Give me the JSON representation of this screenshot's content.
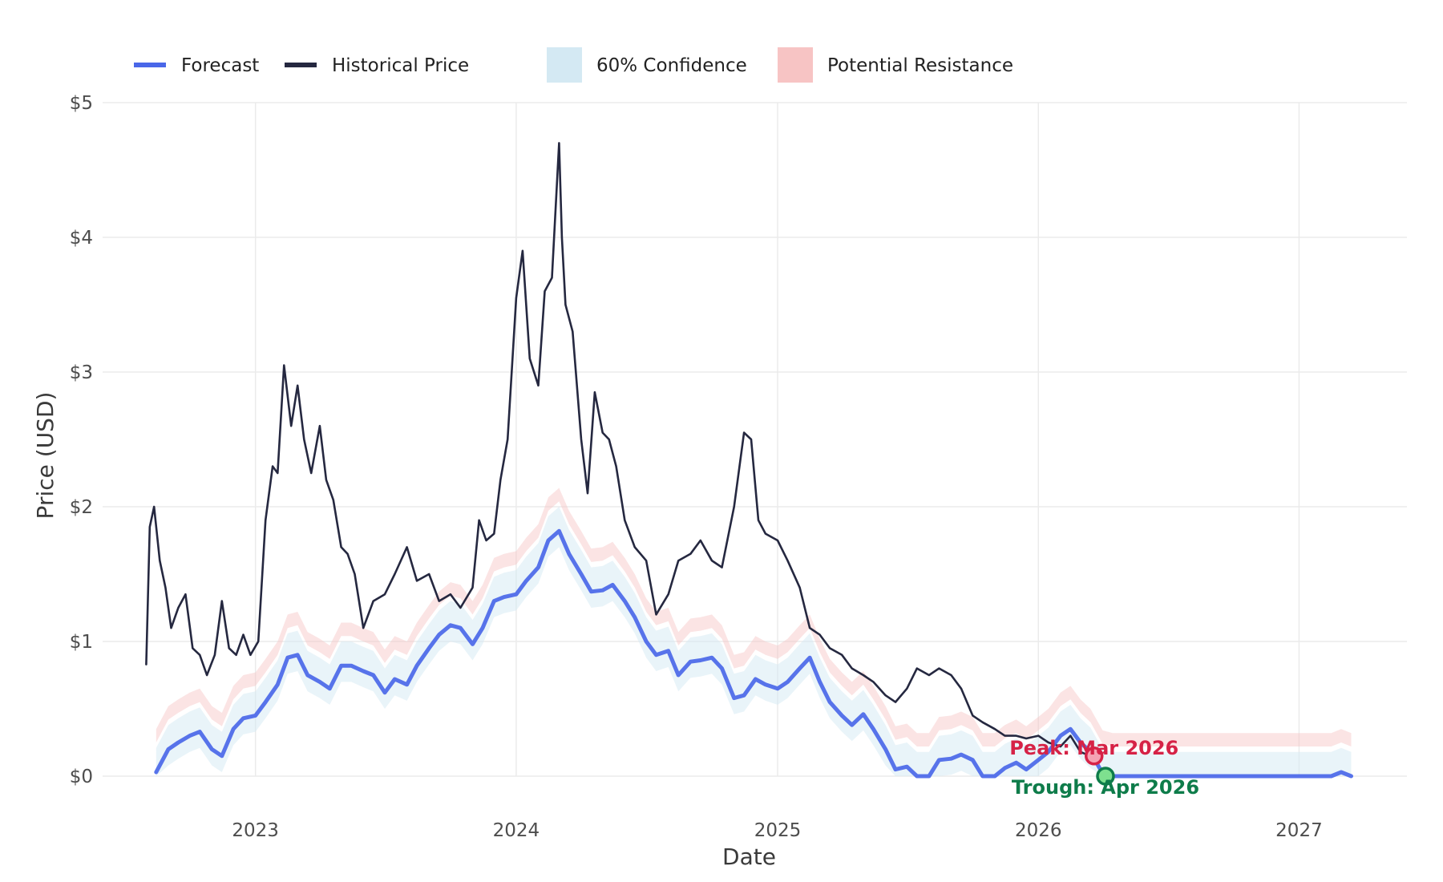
{
  "chart_data": {
    "type": "line",
    "title": "",
    "xlabel": "Date",
    "ylabel": "Price (USD)",
    "ylim": [
      0,
      5
    ],
    "xlim": [
      "2022-06-01",
      "2027-06-01"
    ],
    "y_ticks": [
      0,
      1,
      2,
      3,
      4,
      5
    ],
    "y_tick_labels": [
      "$0",
      "$1",
      "$2",
      "$3",
      "$4",
      "$5"
    ],
    "x_ticks": [
      "2023-01-01",
      "2024-01-01",
      "2025-01-01",
      "2026-01-01",
      "2027-01-01"
    ],
    "x_tick_labels": [
      "2023",
      "2024",
      "2025",
      "2026",
      "2027"
    ],
    "grid": true,
    "legend_position": "top-left",
    "legend": [
      {
        "label": "Forecast",
        "kind": "line",
        "color": "#4a67e8"
      },
      {
        "label": "Historical Price",
        "kind": "line",
        "color": "#252840"
      },
      {
        "label": "60% Confidence",
        "kind": "band",
        "color": "#d4e9f3"
      },
      {
        "label": "Potential Resistance",
        "kind": "band",
        "color": "#f7c4c4"
      }
    ],
    "series": [
      {
        "name": "Historical Price",
        "color": "#252840",
        "x": [
          "2022-08-01",
          "2022-08-06",
          "2022-08-12",
          "2022-08-20",
          "2022-08-28",
          "2022-09-05",
          "2022-09-15",
          "2022-09-25",
          "2022-10-05",
          "2022-10-15",
          "2022-10-25",
          "2022-11-05",
          "2022-11-15",
          "2022-11-25",
          "2022-12-05",
          "2022-12-15",
          "2022-12-25",
          "2023-01-05",
          "2023-01-15",
          "2023-01-25",
          "2023-02-01",
          "2023-02-10",
          "2023-02-20",
          "2023-03-01",
          "2023-03-10",
          "2023-03-20",
          "2023-04-01",
          "2023-04-10",
          "2023-04-20",
          "2023-05-01",
          "2023-05-10",
          "2023-05-20",
          "2023-06-01",
          "2023-06-15",
          "2023-07-01",
          "2023-07-15",
          "2023-08-01",
          "2023-08-15",
          "2023-09-01",
          "2023-09-15",
          "2023-10-01",
          "2023-10-15",
          "2023-11-01",
          "2023-11-10",
          "2023-11-20",
          "2023-12-01",
          "2023-12-10",
          "2023-12-20",
          "2024-01-01",
          "2024-01-10",
          "2024-01-20",
          "2024-02-01",
          "2024-02-10",
          "2024-02-20",
          "2024-03-01",
          "2024-03-05",
          "2024-03-10",
          "2024-03-20",
          "2024-04-01",
          "2024-04-10",
          "2024-04-20",
          "2024-05-01",
          "2024-05-10",
          "2024-05-20",
          "2024-06-01",
          "2024-06-15",
          "2024-07-01",
          "2024-07-15",
          "2024-08-01",
          "2024-08-15",
          "2024-09-01",
          "2024-09-15",
          "2024-10-01",
          "2024-10-15",
          "2024-11-01",
          "2024-11-15",
          "2024-11-25",
          "2024-12-05",
          "2024-12-15",
          "2025-01-01",
          "2025-01-15",
          "2025-02-01",
          "2025-02-15",
          "2025-03-01",
          "2025-03-15",
          "2025-04-01",
          "2025-04-15",
          "2025-05-01",
          "2025-05-15",
          "2025-06-01",
          "2025-06-15",
          "2025-07-01",
          "2025-07-15",
          "2025-08-01",
          "2025-08-15",
          "2025-09-01",
          "2025-09-15",
          "2025-10-01",
          "2025-10-15",
          "2025-11-01",
          "2025-11-15",
          "2025-12-01",
          "2025-12-15",
          "2026-01-01",
          "2026-01-15",
          "2026-02-01",
          "2026-02-15",
          "2026-03-01",
          "2026-03-15"
        ],
        "values": [
          0.83,
          1.85,
          2.0,
          1.6,
          1.4,
          1.1,
          1.25,
          1.35,
          0.95,
          0.9,
          0.75,
          0.9,
          1.3,
          0.95,
          0.9,
          1.05,
          0.9,
          1.0,
          1.9,
          2.3,
          2.25,
          3.05,
          2.6,
          2.9,
          2.5,
          2.25,
          2.6,
          2.2,
          2.05,
          1.7,
          1.65,
          1.5,
          1.1,
          1.3,
          1.35,
          1.5,
          1.7,
          1.45,
          1.5,
          1.3,
          1.35,
          1.25,
          1.4,
          1.9,
          1.75,
          1.8,
          2.2,
          2.5,
          3.55,
          3.9,
          3.1,
          2.9,
          3.6,
          3.7,
          4.7,
          4.0,
          3.5,
          3.3,
          2.5,
          2.1,
          2.85,
          2.55,
          2.5,
          2.3,
          1.9,
          1.7,
          1.6,
          1.2,
          1.35,
          1.6,
          1.65,
          1.75,
          1.6,
          1.55,
          2.0,
          2.55,
          2.5,
          1.9,
          1.8,
          1.75,
          1.6,
          1.4,
          1.1,
          1.05,
          0.95,
          0.9,
          0.8,
          0.75,
          0.7,
          0.6,
          0.55,
          0.65,
          0.8,
          0.75,
          0.8,
          0.75,
          0.65,
          0.45,
          0.4,
          0.35,
          0.3,
          0.3,
          0.28,
          0.3,
          0.25,
          0.22,
          0.3,
          0.18,
          0.15
        ]
      },
      {
        "name": "Forecast",
        "color": "#4a67e8",
        "x": [
          "2022-08-15",
          "2022-09-01",
          "2022-09-15",
          "2022-10-01",
          "2022-10-15",
          "2022-11-01",
          "2022-11-15",
          "2022-12-01",
          "2022-12-15",
          "2023-01-01",
          "2023-01-15",
          "2023-02-01",
          "2023-02-15",
          "2023-03-01",
          "2023-03-15",
          "2023-04-01",
          "2023-04-15",
          "2023-05-01",
          "2023-05-15",
          "2023-06-01",
          "2023-06-15",
          "2023-07-01",
          "2023-07-15",
          "2023-08-01",
          "2023-08-15",
          "2023-09-01",
          "2023-09-15",
          "2023-10-01",
          "2023-10-15",
          "2023-11-01",
          "2023-11-15",
          "2023-12-01",
          "2023-12-15",
          "2024-01-01",
          "2024-01-15",
          "2024-02-01",
          "2024-02-15",
          "2024-03-01",
          "2024-03-15",
          "2024-04-01",
          "2024-04-15",
          "2024-05-01",
          "2024-05-15",
          "2024-06-01",
          "2024-06-15",
          "2024-07-01",
          "2024-07-15",
          "2024-08-01",
          "2024-08-15",
          "2024-09-01",
          "2024-09-15",
          "2024-10-01",
          "2024-10-15",
          "2024-11-01",
          "2024-11-15",
          "2024-12-01",
          "2024-12-15",
          "2025-01-01",
          "2025-01-15",
          "2025-02-01",
          "2025-02-15",
          "2025-03-01",
          "2025-03-15",
          "2025-04-01",
          "2025-04-15",
          "2025-05-01",
          "2025-05-15",
          "2025-06-01",
          "2025-06-15",
          "2025-07-01",
          "2025-07-15",
          "2025-08-01",
          "2025-08-15",
          "2025-09-01",
          "2025-09-15",
          "2025-10-01",
          "2025-10-15",
          "2025-11-01",
          "2025-11-15",
          "2025-12-01",
          "2025-12-15",
          "2026-01-01",
          "2026-01-15",
          "2026-02-01",
          "2026-02-15",
          "2026-03-01",
          "2026-03-15",
          "2026-04-01",
          "2026-04-15",
          "2026-05-01",
          "2026-06-01",
          "2026-08-01",
          "2026-10-01",
          "2026-12-01",
          "2027-01-01",
          "2027-02-01",
          "2027-02-15",
          "2027-03-01",
          "2027-03-15"
        ],
        "values": [
          0.03,
          0.2,
          0.25,
          0.3,
          0.33,
          0.2,
          0.15,
          0.35,
          0.43,
          0.45,
          0.55,
          0.68,
          0.88,
          0.9,
          0.75,
          0.7,
          0.65,
          0.82,
          0.82,
          0.78,
          0.75,
          0.62,
          0.72,
          0.68,
          0.82,
          0.95,
          1.05,
          1.12,
          1.1,
          0.98,
          1.1,
          1.3,
          1.33,
          1.35,
          1.45,
          1.55,
          1.75,
          1.82,
          1.65,
          1.5,
          1.37,
          1.38,
          1.42,
          1.3,
          1.18,
          1.0,
          0.9,
          0.93,
          0.75,
          0.85,
          0.86,
          0.88,
          0.8,
          0.58,
          0.6,
          0.72,
          0.68,
          0.65,
          0.7,
          0.8,
          0.88,
          0.7,
          0.55,
          0.45,
          0.38,
          0.46,
          0.35,
          0.2,
          0.05,
          0.07,
          0.0,
          0.0,
          0.12,
          0.13,
          0.16,
          0.12,
          0.0,
          0.0,
          0.06,
          0.1,
          0.05,
          0.12,
          0.18,
          0.3,
          0.35,
          0.25,
          0.18,
          0.02,
          0.0,
          0.0,
          0.0,
          0.0,
          0.0,
          0.0,
          0.0,
          0.0,
          0.0,
          0.03,
          0.0
        ]
      }
    ],
    "confidence_band": {
      "label": "60% Confidence",
      "offset_lower": 0.12,
      "offset_upper": 0.18
    },
    "resistance_band": {
      "label": "Potential Resistance",
      "offset_lower": 0.22,
      "offset_upper": 0.32
    },
    "annotations": [
      {
        "text": "Peak: Mar 2026",
        "x": "2026-03-20",
        "y": 0.15,
        "color": "#d62246"
      },
      {
        "text": "Trough: Apr 2026",
        "x": "2026-04-05",
        "y": 0.0,
        "color": "#0e7c4a"
      }
    ]
  }
}
